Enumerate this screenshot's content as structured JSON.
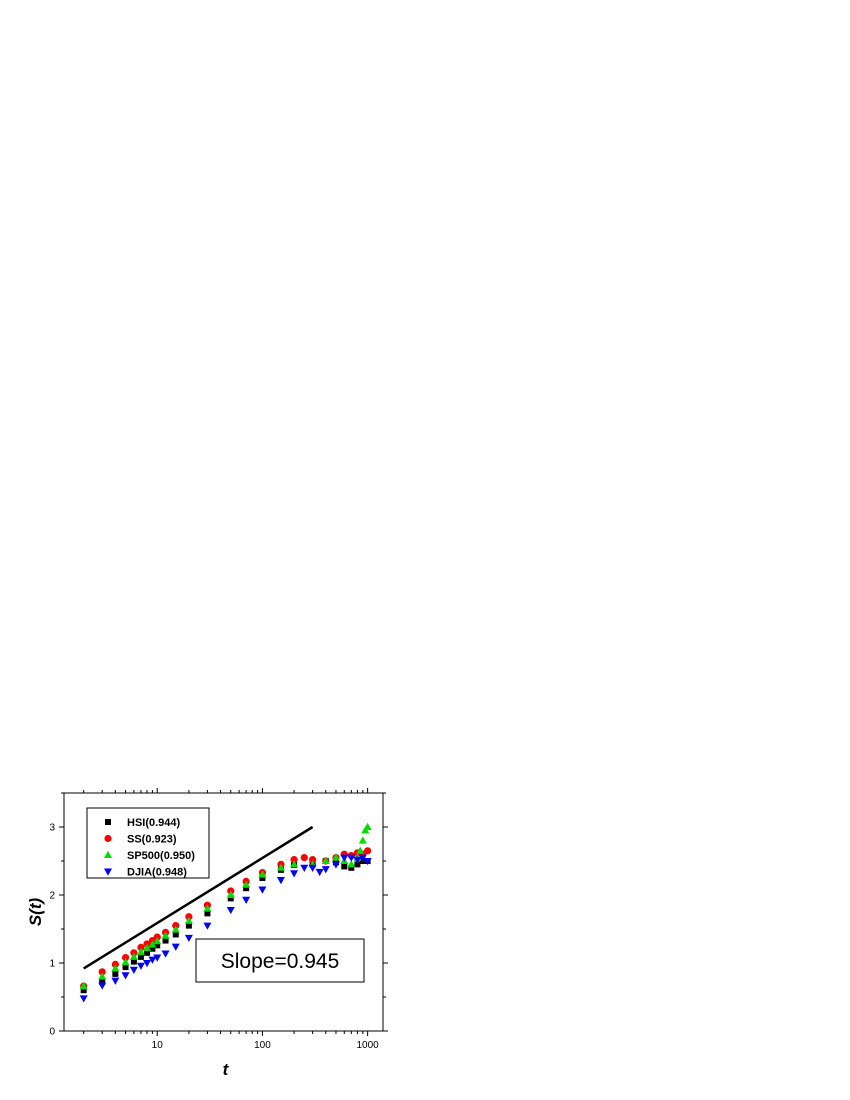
{
  "chart_data": {
    "type": "scatter",
    "xscale": "log",
    "xlim": [
      1.3,
      1400
    ],
    "ylim": [
      0,
      3.5
    ],
    "xlabel": "t",
    "ylabel": "S(t)",
    "xticks": [
      10,
      100,
      1000
    ],
    "xtick_labels": [
      "10",
      "100",
      "1000"
    ],
    "yticks": [
      0,
      1,
      2,
      3
    ],
    "ytick_labels": [
      "0",
      "1",
      "2",
      "3"
    ],
    "grid": false,
    "legend_position": "top-left",
    "series": [
      {
        "name": "HSI(0.944)",
        "marker": "square",
        "color": "#000000",
        "x": [
          2,
          3,
          4,
          5,
          6,
          7,
          8,
          9,
          10,
          12,
          15,
          20,
          30,
          50,
          70,
          100,
          150,
          200,
          300,
          400,
          500,
          600,
          700,
          800,
          900,
          1000
        ],
        "y": [
          0.6,
          0.72,
          0.84,
          0.94,
          1.02,
          1.09,
          1.15,
          1.21,
          1.26,
          1.33,
          1.42,
          1.55,
          1.73,
          1.95,
          2.1,
          2.25,
          2.37,
          2.44,
          2.48,
          2.5,
          2.48,
          2.42,
          2.4,
          2.45,
          2.5,
          2.5
        ]
      },
      {
        "name": "SS(0.923)",
        "marker": "circle",
        "color": "#ff0000",
        "x": [
          2,
          3,
          4,
          5,
          6,
          7,
          8,
          9,
          10,
          12,
          15,
          20,
          30,
          50,
          70,
          100,
          150,
          200,
          250,
          300,
          400,
          500,
          600,
          700,
          800,
          900,
          1000
        ],
        "y": [
          0.66,
          0.87,
          0.98,
          1.08,
          1.15,
          1.23,
          1.28,
          1.33,
          1.38,
          1.45,
          1.55,
          1.68,
          1.85,
          2.06,
          2.2,
          2.33,
          2.45,
          2.52,
          2.55,
          2.52,
          2.5,
          2.55,
          2.6,
          2.58,
          2.62,
          2.6,
          2.65
        ]
      },
      {
        "name": "SP500(0.950)",
        "marker": "triangle-up",
        "color": "#00dd00",
        "x": [
          2,
          3,
          4,
          5,
          6,
          7,
          8,
          9,
          10,
          12,
          15,
          20,
          30,
          50,
          70,
          100,
          150,
          200,
          300,
          400,
          500,
          600,
          700,
          800,
          850,
          900,
          950,
          1000
        ],
        "y": [
          0.66,
          0.8,
          0.92,
          1.01,
          1.09,
          1.16,
          1.22,
          1.27,
          1.32,
          1.4,
          1.49,
          1.62,
          1.8,
          2.0,
          2.15,
          2.3,
          2.4,
          2.45,
          2.45,
          2.5,
          2.55,
          2.5,
          2.45,
          2.55,
          2.65,
          2.8,
          2.95,
          3.0
        ]
      },
      {
        "name": "DJIA(0.948)",
        "marker": "triangle-down",
        "color": "#0000ff",
        "x": [
          2,
          3,
          4,
          5,
          6,
          7,
          8,
          9,
          10,
          12,
          15,
          20,
          30,
          50,
          70,
          100,
          150,
          200,
          250,
          300,
          350,
          400,
          500,
          600,
          700,
          800,
          900,
          1000
        ],
        "y": [
          0.48,
          0.67,
          0.74,
          0.82,
          0.9,
          0.96,
          1.0,
          1.05,
          1.08,
          1.14,
          1.24,
          1.37,
          1.55,
          1.78,
          1.93,
          2.08,
          2.22,
          2.32,
          2.4,
          2.4,
          2.34,
          2.38,
          2.45,
          2.55,
          2.55,
          2.52,
          2.55,
          2.5
        ]
      }
    ],
    "reference_line": {
      "x": [
        2,
        300
      ],
      "y": [
        0.92,
        3.0
      ],
      "color": "#000000"
    },
    "annotation": "Slope=0.945"
  }
}
